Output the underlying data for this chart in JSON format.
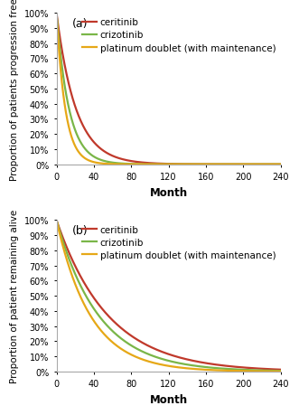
{
  "panel_a": {
    "label": "(a)",
    "ylabel": "Proportion of patients progression free",
    "xlabel": "Month",
    "xlim": [
      0,
      240
    ],
    "ylim": [
      0,
      1.0
    ],
    "yticks": [
      0.0,
      0.1,
      0.2,
      0.3,
      0.4,
      0.5,
      0.6,
      0.7,
      0.8,
      0.9,
      1.0
    ],
    "xticks": [
      0,
      40,
      80,
      120,
      160,
      200,
      240
    ],
    "curves": {
      "ceritinib": {
        "lambda": 0.048,
        "hr": 1.0,
        "color": "#c0392b",
        "label": "ceritinib"
      },
      "crizotinib": {
        "hr": 1.55,
        "color": "#7ab648",
        "label": "crizotinib"
      },
      "platinum": {
        "hr": 2.2,
        "color": "#e6a817",
        "label": "platinum doublet (with maintenance)"
      }
    }
  },
  "panel_b": {
    "label": "(b)",
    "ylabel": "Proportion of patient remaining alive",
    "xlabel": "Month",
    "xlim": [
      0,
      240
    ],
    "ylim": [
      0,
      1.0
    ],
    "yticks": [
      0.0,
      0.1,
      0.2,
      0.3,
      0.4,
      0.5,
      0.6,
      0.7,
      0.8,
      0.9,
      1.0
    ],
    "xticks": [
      0,
      40,
      80,
      120,
      160,
      200,
      240
    ],
    "curves": {
      "ceritinib": {
        "lambda": 0.018,
        "hr": 1.0,
        "color": "#c0392b",
        "label": "ceritinib"
      },
      "crizotinib": {
        "hr": 1.22,
        "color": "#7ab648",
        "label": "crizotinib"
      },
      "platinum": {
        "hr": 1.52,
        "color": "#e6a817",
        "label": "platinum doublet (with maintenance)"
      }
    }
  },
  "linewidth": 1.6,
  "background_color": "#ffffff",
  "border_color": "#aaaaaa",
  "axes_color": "#aaaaaa",
  "tick_label_fontsize": 7.0,
  "axis_label_fontsize": 7.5,
  "legend_fontsize": 7.5,
  "panel_label_fontsize": 9,
  "xlabel_fontsize": 8.5
}
